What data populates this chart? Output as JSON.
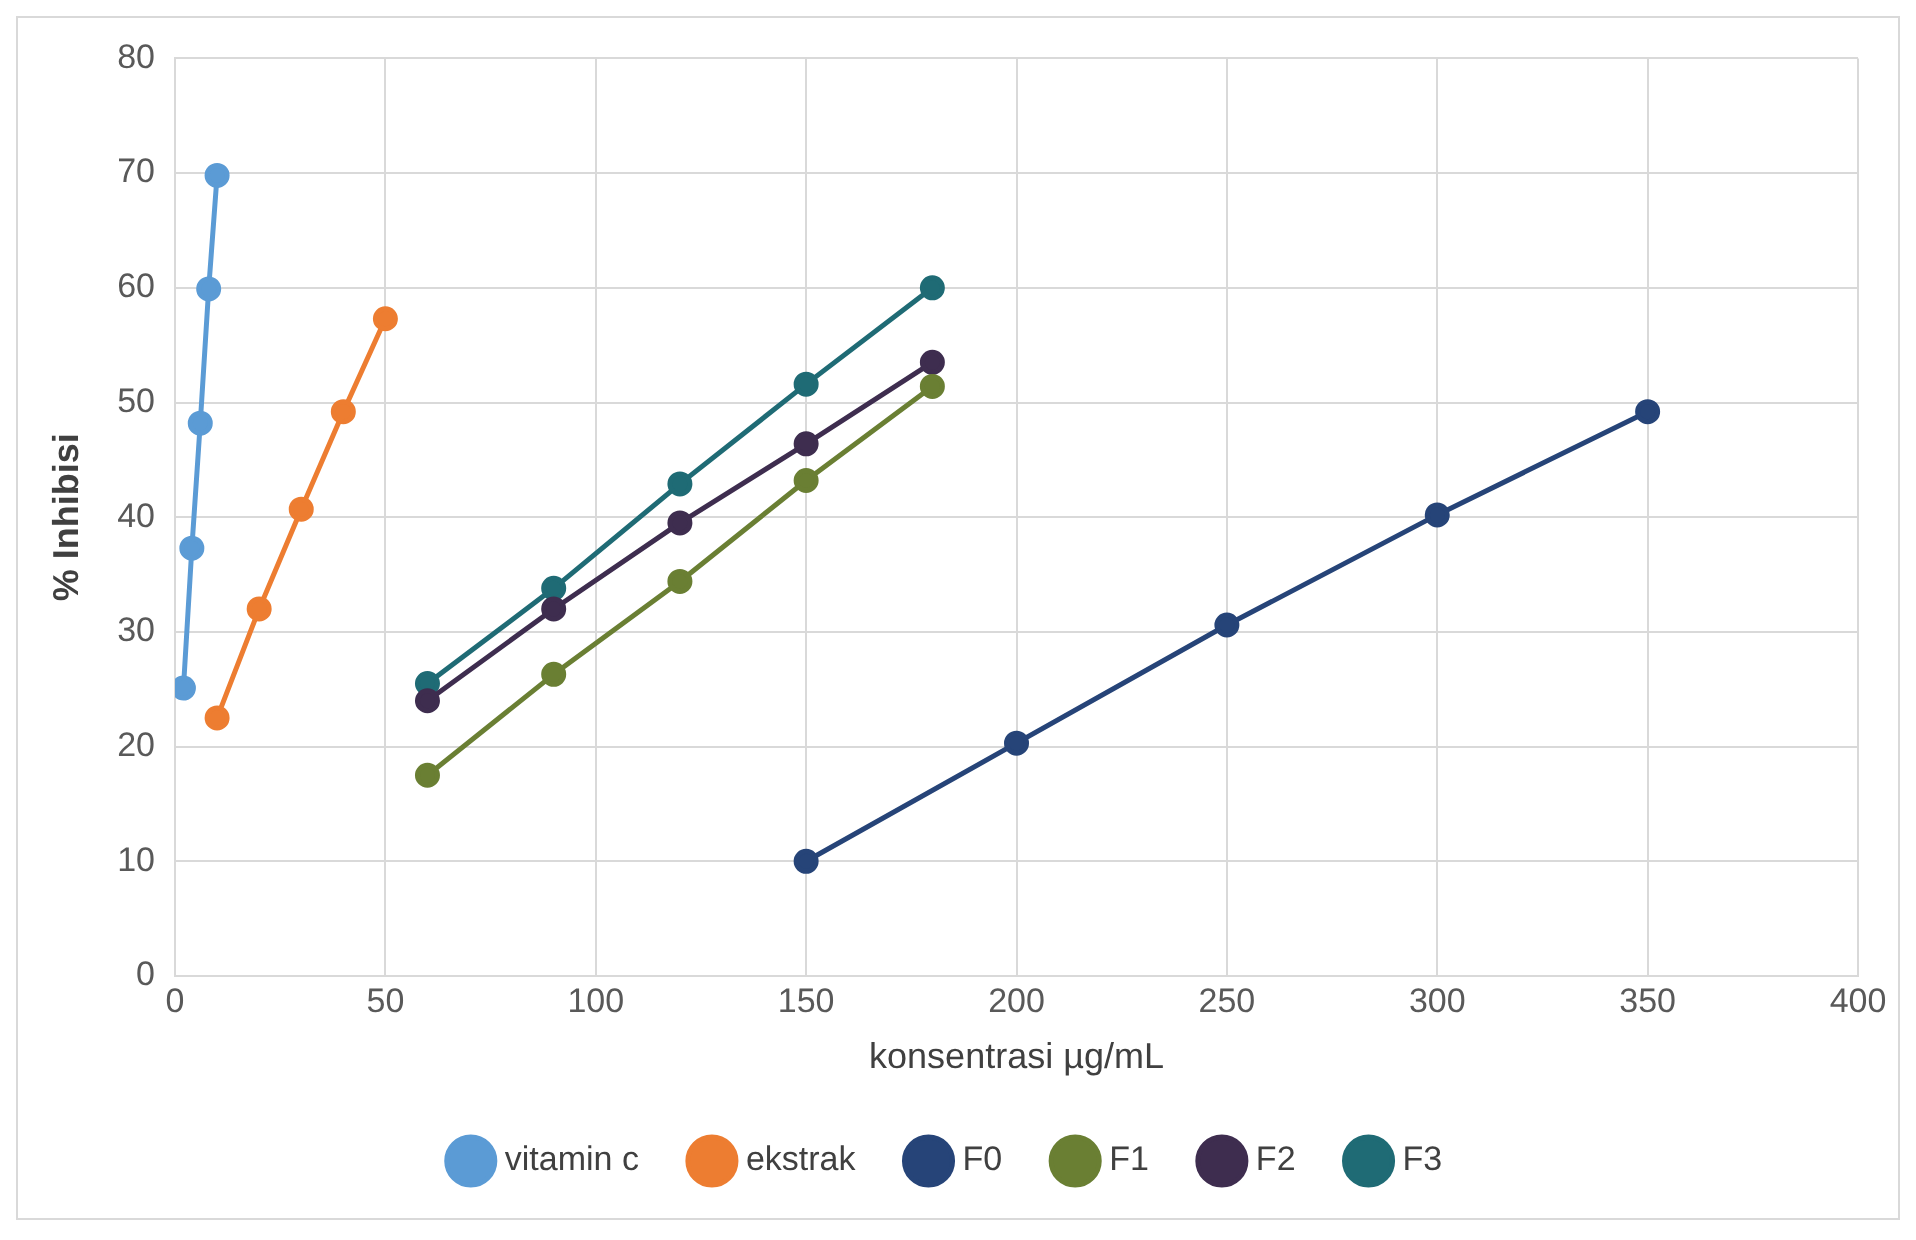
{
  "chart_data": {
    "type": "line",
    "xlabel": "konsentrasi µg/mL",
    "ylabel": "% Inhibisi",
    "xlim": [
      0,
      400
    ],
    "xticks": [
      0,
      50,
      100,
      150,
      200,
      250,
      300,
      350,
      400
    ],
    "ylim": [
      0,
      80
    ],
    "yticks": [
      0,
      10,
      20,
      30,
      40,
      50,
      60,
      70,
      80
    ],
    "grid": true,
    "legend": "bottom",
    "marker": "circle",
    "line_style": "solid",
    "series": [
      {
        "name": "vitamin c",
        "color": "#5b9bd5",
        "x": [
          2,
          4,
          6,
          8,
          10
        ],
        "values": [
          25.1,
          37.3,
          48.2,
          59.9,
          69.8
        ]
      },
      {
        "name": "ekstrak",
        "color": "#ed7d31",
        "x": [
          10,
          20,
          30,
          40,
          50
        ],
        "values": [
          22.5,
          32,
          40.7,
          49.2,
          57.3
        ]
      },
      {
        "name": "F0",
        "color": "#264478",
        "x": [
          150,
          200,
          250,
          300,
          350
        ],
        "values": [
          10,
          20.3,
          30.6,
          40.2,
          49.2
        ]
      },
      {
        "name": "F1",
        "color": "#6a7f33",
        "x": [
          60,
          90,
          120,
          150,
          180
        ],
        "values": [
          17.5,
          26.3,
          34.4,
          43.2,
          51.4
        ]
      },
      {
        "name": "F2",
        "color": "#3e2d4f",
        "x": [
          60,
          90,
          120,
          150,
          180
        ],
        "values": [
          24,
          32,
          39.5,
          46.4,
          53.5
        ]
      },
      {
        "name": "F3",
        "color": "#1f6b75",
        "x": [
          60,
          90,
          120,
          150,
          180
        ],
        "values": [
          25.5,
          33.8,
          42.9,
          51.6,
          60
        ]
      }
    ]
  }
}
